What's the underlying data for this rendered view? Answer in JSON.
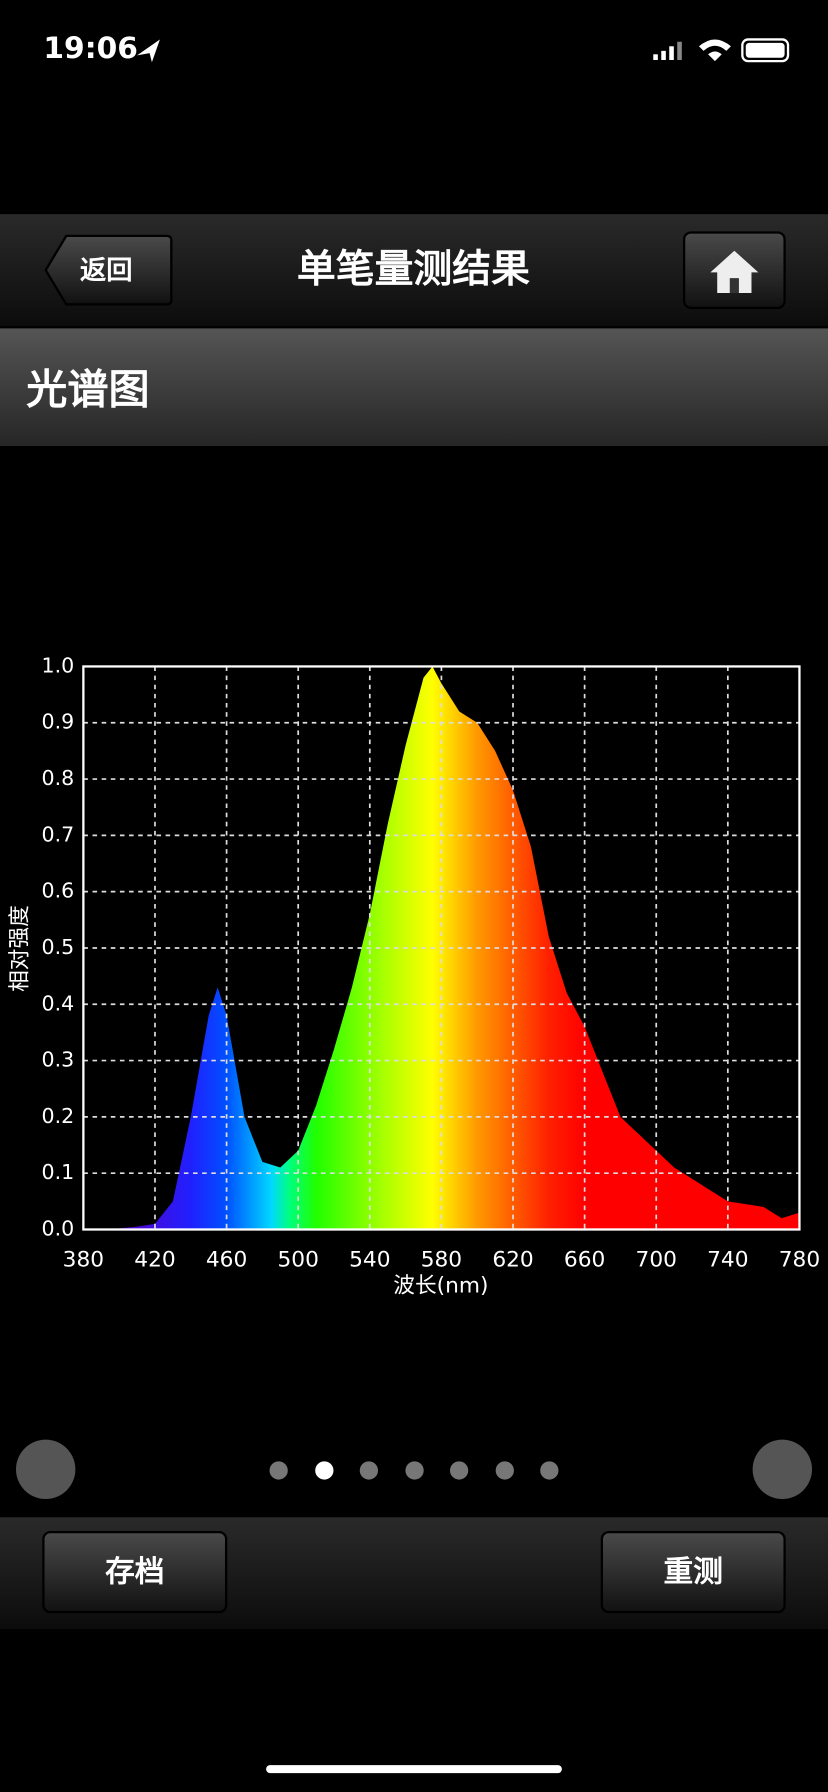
{
  "status_bar": {
    "time": "19:06"
  },
  "nav": {
    "back": "返回",
    "title": "单笔量测结果"
  },
  "section": {
    "title": "光谱图"
  },
  "chart_data": {
    "type": "area",
    "x_label": "波长(nm)",
    "y_label": "相对强度",
    "x": [
      380,
      390,
      400,
      410,
      420,
      430,
      440,
      450,
      455,
      460,
      470,
      480,
      490,
      500,
      510,
      520,
      530,
      540,
      550,
      560,
      570,
      575,
      580,
      590,
      600,
      610,
      620,
      630,
      640,
      650,
      660,
      670,
      680,
      690,
      700,
      710,
      720,
      730,
      740,
      750,
      760,
      770,
      780
    ],
    "values": [
      0,
      0,
      0.002,
      0.005,
      0.01,
      0.05,
      0.2,
      0.38,
      0.43,
      0.38,
      0.2,
      0.12,
      0.11,
      0.14,
      0.22,
      0.32,
      0.43,
      0.56,
      0.72,
      0.86,
      0.98,
      1.0,
      0.97,
      0.92,
      0.9,
      0.85,
      0.78,
      0.68,
      0.52,
      0.42,
      0.36,
      0.28,
      0.2,
      0.17,
      0.14,
      0.11,
      0.09,
      0.07,
      0.05,
      0.045,
      0.04,
      0.02,
      0.03
    ],
    "xlim": [
      380,
      780
    ],
    "ylim": [
      0,
      1
    ],
    "xticks": [
      380,
      420,
      460,
      500,
      540,
      580,
      620,
      660,
      700,
      740,
      780
    ],
    "yticks": [
      {
        "value": 0,
        "label": "0.0"
      },
      0.1,
      0.2,
      0.3,
      0.4,
      0.5,
      0.6,
      0.7,
      0.8,
      0.9,
      {
        "value": 1,
        "label": "1.0"
      }
    ],
    "grid": true
  },
  "buttons": {
    "save": "存档",
    "retest": "重测"
  }
}
